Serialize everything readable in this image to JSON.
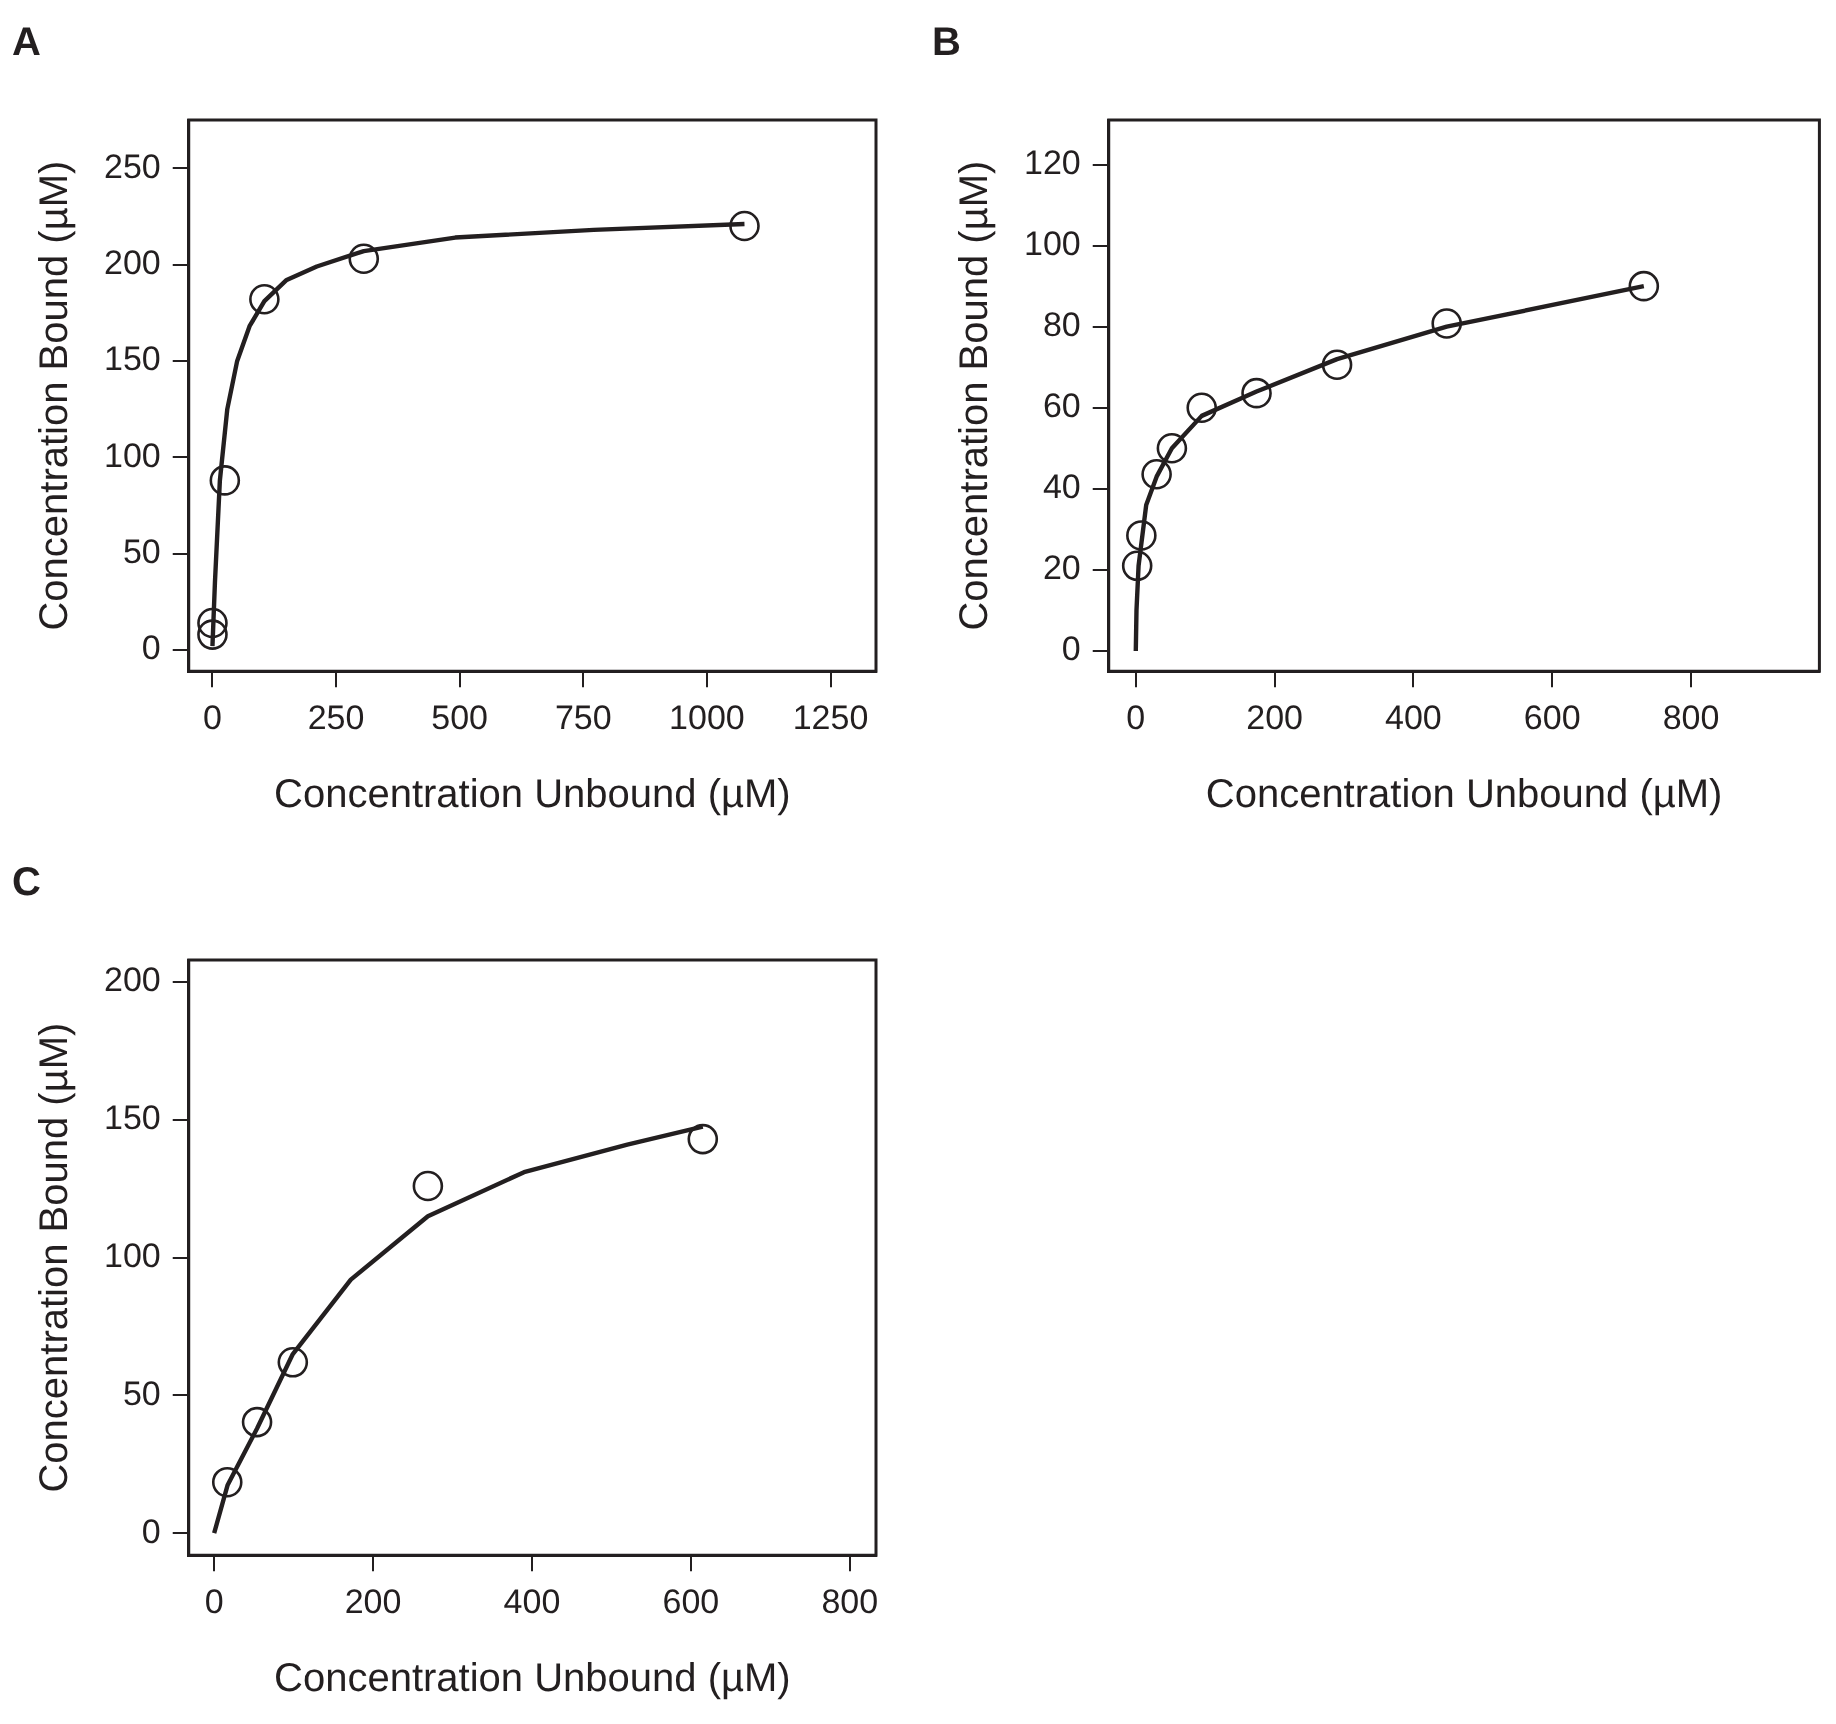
{
  "chart_data": [
    {
      "type": "scatter",
      "title": "A",
      "xlabel": "Concentration Unbound (µM)",
      "ylabel": "Concentration Bound (µM)",
      "xlim": [
        -48,
        1342
      ],
      "ylim": [
        -11,
        275
      ],
      "xticks": [
        0,
        250,
        500,
        750,
        1000,
        1250
      ],
      "yticks": [
        0,
        50,
        100,
        150,
        200,
        250
      ],
      "grid": false,
      "legend": false,
      "marker": "circle",
      "series": [
        {
          "type": "scatter",
          "color": "#231f20",
          "x": [
            0,
            0,
            25,
            105,
            306,
            1076
          ],
          "values": [
            8,
            14,
            88,
            182,
            203,
            220
          ]
        },
        {
          "type": "line",
          "color": "#231f20",
          "marker": "none",
          "line_style": "solid",
          "x": [
            0,
            5,
            15,
            30,
            50,
            75,
            105,
            150,
            211,
            306,
            491,
            771,
            1076
          ],
          "values": [
            2,
            35,
            88,
            125,
            150,
            168,
            181,
            192,
            199,
            207,
            214,
            218,
            221
          ]
        }
      ]
    },
    {
      "type": "scatter",
      "title": "B",
      "xlabel": "Concentration Unbound (µM)",
      "ylabel": "Concentration Bound (µM)",
      "xlim": [
        -39,
        985
      ],
      "ylim": [
        -5,
        131
      ],
      "xticks": [
        0,
        200,
        400,
        600,
        800
      ],
      "yticks": [
        0,
        20,
        40,
        60,
        80,
        100,
        120
      ],
      "grid": false,
      "legend": false,
      "marker": "circle",
      "series": [
        {
          "type": "scatter",
          "color": "#231f20",
          "x": [
            2,
            8,
            30,
            52,
            95,
            174,
            290,
            448,
            732
          ],
          "values": [
            21,
            28.5,
            43.6,
            50,
            60,
            63.6,
            70.6,
            80.8,
            90
          ]
        },
        {
          "type": "line",
          "color": "#231f20",
          "marker": "none",
          "line_style": "solid",
          "x": [
            0,
            1,
            4,
            15,
            30,
            52,
            95,
            174,
            290,
            448,
            732
          ],
          "values": [
            0,
            10,
            21,
            36,
            43,
            50,
            58,
            64,
            72,
            80,
            90
          ]
        }
      ]
    },
    {
      "type": "scatter",
      "title": "C",
      "xlabel": "Concentration Unbound (µM)",
      "ylabel": "Concentration Bound (µM)",
      "xlim": [
        -32,
        833
      ],
      "ylim": [
        -8,
        208
      ],
      "xticks": [
        0,
        200,
        400,
        600,
        800
      ],
      "yticks": [
        0,
        50,
        100,
        150,
        200
      ],
      "grid": false,
      "legend": false,
      "marker": "circle",
      "series": [
        {
          "type": "scatter",
          "color": "#231f20",
          "x": [
            16.5,
            54,
            99,
            269,
            615
          ],
          "values": [
            18.5,
            40.3,
            62,
            126,
            143
          ]
        },
        {
          "type": "line",
          "color": "#231f20",
          "marker": "none",
          "line_style": "solid",
          "x": [
            0,
            17,
            54,
            99,
            172,
            269,
            390,
            520,
            615
          ],
          "values": [
            0,
            17.5,
            38,
            65,
            92,
            115,
            131,
            141,
            147.5
          ]
        }
      ]
    }
  ]
}
